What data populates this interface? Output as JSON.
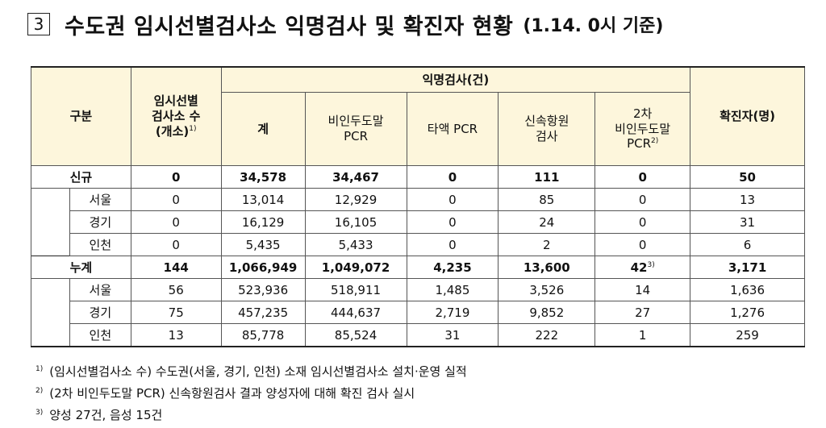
{
  "header": {
    "section_number": "3",
    "title": "수도권 임시선별검사소 익명검사 및 확진자 현황",
    "date": "(1.14. 0시 기준)"
  },
  "table": {
    "headers": {
      "category": "구분",
      "sites_line1": "임시선별",
      "sites_line2": "검사소 수",
      "sites_line3": "(개소)",
      "sites_note": "1)",
      "anon_group": "익명검사(건)",
      "total": "계",
      "nasal_line1": "비인두도말",
      "nasal_line2": "PCR",
      "saliva": "타액 PCR",
      "rapid_line1": "신속항원",
      "rapid_line2": "검사",
      "second_line1": "2차",
      "second_line2": "비인두도말",
      "second_line3": "PCR",
      "second_note": "2)",
      "confirmed": "확진자(명)"
    },
    "rows": [
      {
        "label": "신규",
        "sites": "0",
        "total": "34,578",
        "nasal": "34,467",
        "saliva": "0",
        "rapid": "111",
        "second": "0",
        "second_note": "",
        "confirmed": "50"
      },
      {
        "label": "서울",
        "sites": "0",
        "total": "13,014",
        "nasal": "12,929",
        "saliva": "0",
        "rapid": "85",
        "second": "0",
        "second_note": "",
        "confirmed": "13"
      },
      {
        "label": "경기",
        "sites": "0",
        "total": "16,129",
        "nasal": "16,105",
        "saliva": "0",
        "rapid": "24",
        "second": "0",
        "second_note": "",
        "confirmed": "31"
      },
      {
        "label": "인천",
        "sites": "0",
        "total": "5,435",
        "nasal": "5,433",
        "saliva": "0",
        "rapid": "2",
        "second": "0",
        "second_note": "",
        "confirmed": "6"
      },
      {
        "label": "누계",
        "sites": "144",
        "total": "1,066,949",
        "nasal": "1,049,072",
        "saliva": "4,235",
        "rapid": "13,600",
        "second": "42",
        "second_note": "3)",
        "confirmed": "3,171"
      },
      {
        "label": "서울",
        "sites": "56",
        "total": "523,936",
        "nasal": "518,911",
        "saliva": "1,485",
        "rapid": "3,526",
        "second": "14",
        "second_note": "",
        "confirmed": "1,636"
      },
      {
        "label": "경기",
        "sites": "75",
        "total": "457,235",
        "nasal": "444,637",
        "saliva": "2,719",
        "rapid": "9,852",
        "second": "27",
        "second_note": "",
        "confirmed": "1,276"
      },
      {
        "label": "인천",
        "sites": "13",
        "total": "85,778",
        "nasal": "85,524",
        "saliva": "31",
        "rapid": "222",
        "second": "1",
        "second_note": "",
        "confirmed": "259"
      }
    ]
  },
  "footnotes": [
    {
      "mark": "1)",
      "text": "(임시선별검사소 수) 수도권(서울, 경기, 인천) 소재 임시선별검사소 설치·운영 실적"
    },
    {
      "mark": "2)",
      "text": "(2차 비인두도말 PCR) 신속항원검사 결과 양성자에 대해 확진 검사 실시"
    },
    {
      "mark": "3)",
      "text": "양성 27건, 음성 15건"
    }
  ]
}
